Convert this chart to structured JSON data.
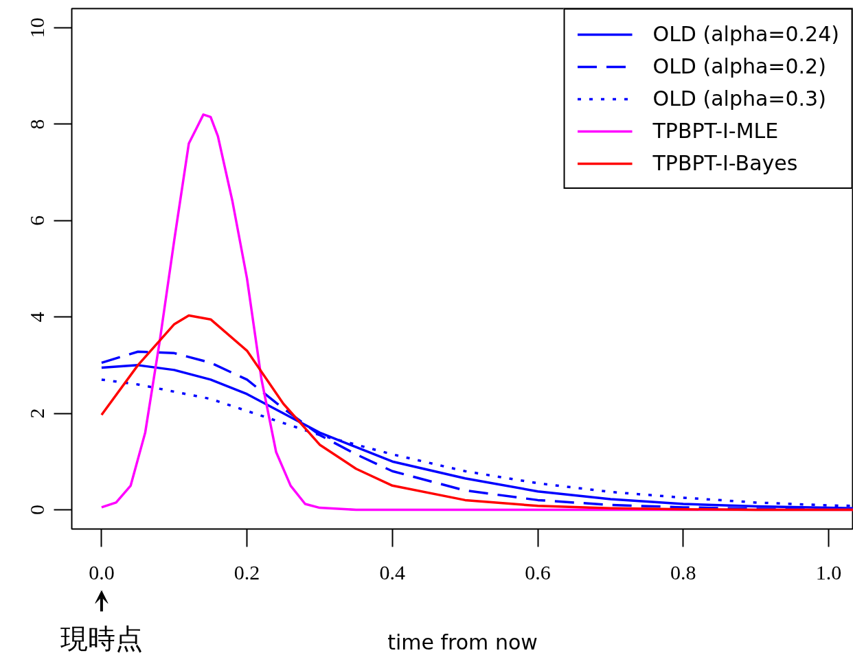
{
  "chart_data": {
    "type": "line",
    "xlabel": "time from now",
    "xlim": [
      -0.041,
      1.034
    ],
    "ylim": [
      -0.4,
      10.4
    ],
    "xticks": [
      {
        "value": 0,
        "label": "0.0"
      },
      0.2,
      0.4,
      0.6,
      0.8,
      {
        "value": 1,
        "label": "1.0"
      }
    ],
    "yticks": [
      0,
      2,
      4,
      6,
      8,
      10
    ],
    "grid": false,
    "legend": "top right",
    "annotations": [
      "現時点"
    ],
    "x": [
      0,
      0.05,
      0.1,
      0.15,
      0.2,
      0.25,
      0.3,
      0.35,
      0.4,
      0.5,
      0.6,
      0.7,
      0.8,
      0.9,
      1.0,
      1.034
    ],
    "series": [
      {
        "name": "OLD (alpha=0.24)",
        "color": "#0000ff",
        "line_style": "solid",
        "values": [
          2.95,
          3.0,
          2.9,
          2.7,
          2.4,
          2.0,
          1.6,
          1.3,
          1.0,
          0.65,
          0.38,
          0.22,
          0.12,
          0.07,
          0.04,
          0.03
        ]
      },
      {
        "name": "OLD (alpha=0.2)",
        "color": "#0000ff",
        "line_style": "dashed",
        "values": [
          3.05,
          3.28,
          3.25,
          3.05,
          2.7,
          2.1,
          1.55,
          1.15,
          0.8,
          0.4,
          0.2,
          0.1,
          0.05,
          0.02,
          0.01,
          0.01
        ]
      },
      {
        "name": "OLD (alpha=0.3)",
        "color": "#0000ff",
        "line_style": "dotted",
        "values": [
          2.7,
          2.6,
          2.45,
          2.3,
          2.05,
          1.8,
          1.55,
          1.35,
          1.15,
          0.8,
          0.55,
          0.37,
          0.25,
          0.15,
          0.09,
          0.08
        ]
      },
      {
        "name": "TPBPT-I-MLE",
        "color": "#ff00ff",
        "line_style": "solid",
        "x": [
          0,
          0.02,
          0.04,
          0.06,
          0.08,
          0.1,
          0.12,
          0.13,
          0.14,
          0.15,
          0.16,
          0.18,
          0.2,
          0.22,
          0.24,
          0.26,
          0.28,
          0.3,
          0.35,
          0.5,
          1.034
        ],
        "values": [
          0.05,
          0.15,
          0.5,
          1.6,
          3.5,
          5.6,
          7.6,
          7.9,
          8.2,
          8.15,
          7.75,
          6.4,
          4.8,
          2.7,
          1.2,
          0.5,
          0.12,
          0.04,
          0,
          0,
          0
        ]
      },
      {
        "name": "TPBPT-I-Bayes",
        "color": "#ff0000",
        "line_style": "solid",
        "x": [
          0,
          0.05,
          0.1,
          0.12,
          0.15,
          0.2,
          0.25,
          0.3,
          0.35,
          0.4,
          0.5,
          0.6,
          0.7,
          0.8,
          0.9,
          1.034
        ],
        "values": [
          1.97,
          3.0,
          3.85,
          4.03,
          3.95,
          3.3,
          2.2,
          1.35,
          0.85,
          0.5,
          0.2,
          0.08,
          0.03,
          0.01,
          0,
          0
        ]
      }
    ]
  }
}
